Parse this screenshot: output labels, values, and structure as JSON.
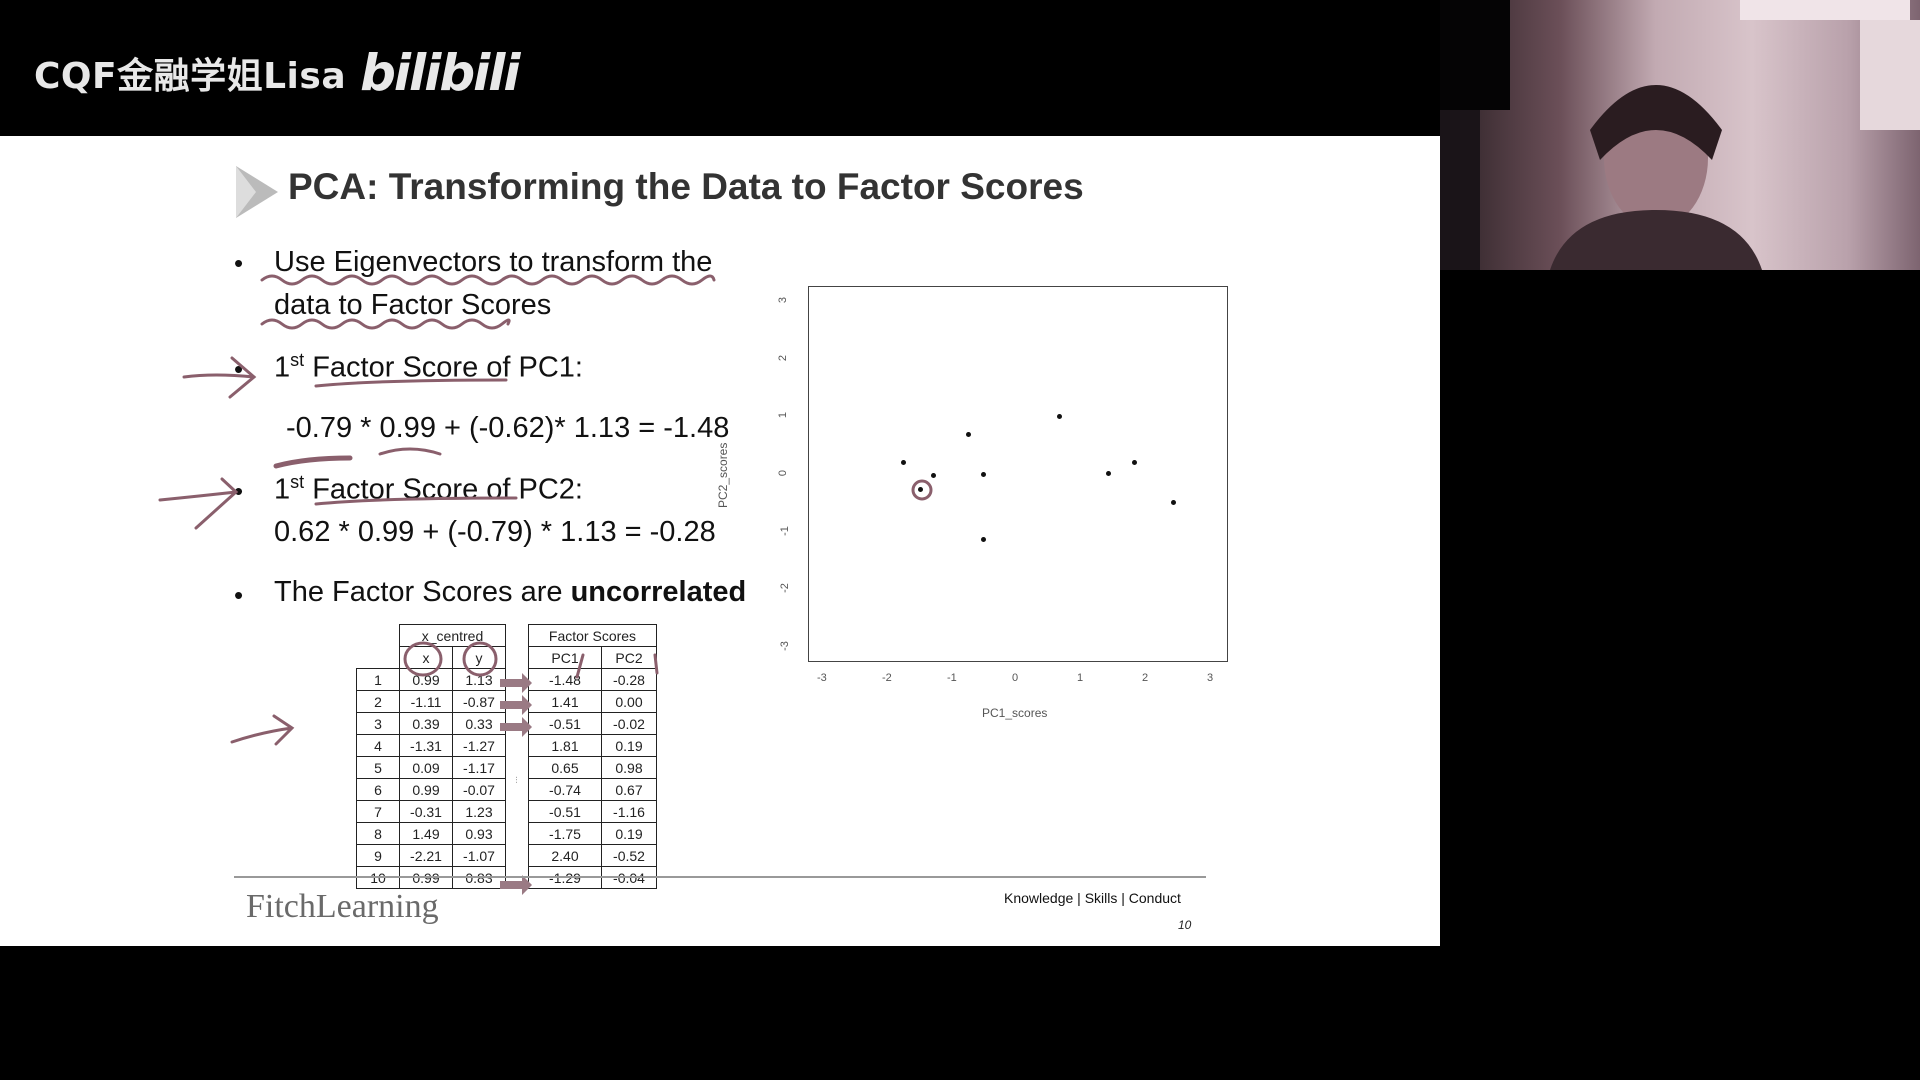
{
  "watermark": {
    "text": "CQF金融学姐Lisa",
    "logo": "bilibili"
  },
  "slide": {
    "title": "PCA: Transforming the Data to Factor Scores",
    "bullets": {
      "b1_line1": "Use Eigenvectors to transform the",
      "b1_line2": "data to Factor Scores",
      "b2_pre": "1",
      "b2_sup": "st",
      "b2_post": " Factor Score of PC1:",
      "b2_formula": "-0.79 * 0.99 + (-0.62)* 1.13 = -1.48",
      "b3_pre": "1",
      "b3_sup": "st",
      "b3_post": " Factor Score of PC2:",
      "b3_formula": "0.62 * 0.99 + (-0.79) * 1.13 = -0.28",
      "b4_pre": "The Factor Scores are ",
      "b4_bold": "uncorrelated"
    },
    "table_left": {
      "group_header": "x_centred",
      "col_x": "x",
      "col_y": "y",
      "rows": [
        {
          "idx": "1",
          "x": "0.99",
          "y": "1.13"
        },
        {
          "idx": "2",
          "x": "-1.11",
          "y": "-0.87"
        },
        {
          "idx": "3",
          "x": "0.39",
          "y": "0.33"
        },
        {
          "idx": "4",
          "x": "-1.31",
          "y": "-1.27"
        },
        {
          "idx": "5",
          "x": "0.09",
          "y": "-1.17"
        },
        {
          "idx": "6",
          "x": "0.99",
          "y": "-0.07"
        },
        {
          "idx": "7",
          "x": "-0.31",
          "y": "1.23"
        },
        {
          "idx": "8",
          "x": "1.49",
          "y": "0.93"
        },
        {
          "idx": "9",
          "x": "-2.21",
          "y": "-1.07"
        },
        {
          "idx": "10",
          "x": "0.99",
          "y": "0.83"
        }
      ]
    },
    "table_right": {
      "group_header": "Factor Scores",
      "col_pc1": "PC1",
      "col_pc2": "PC2",
      "rows": [
        {
          "pc1": "-1.48",
          "pc2": "-0.28"
        },
        {
          "pc1": "1.41",
          "pc2": "0.00"
        },
        {
          "pc1": "-0.51",
          "pc2": "-0.02"
        },
        {
          "pc1": "1.81",
          "pc2": "0.19"
        },
        {
          "pc1": "0.65",
          "pc2": "0.98"
        },
        {
          "pc1": "-0.74",
          "pc2": "0.67"
        },
        {
          "pc1": "-0.51",
          "pc2": "-1.16"
        },
        {
          "pc1": "-1.75",
          "pc2": "0.19"
        },
        {
          "pc1": "2.40",
          "pc2": "-0.52"
        },
        {
          "pc1": "-1.29",
          "pc2": "-0.04"
        }
      ]
    },
    "footer": {
      "logo": "FitchLearning",
      "tagline": "Knowledge | Skills | Conduct",
      "page": "10"
    }
  },
  "chart_data": {
    "type": "scatter",
    "xlabel": "PC1_scores",
    "ylabel": "PC2_scores",
    "xlim": [
      -3,
      3
    ],
    "ylim": [
      -3,
      3
    ],
    "xticks": [
      "-3",
      "-2",
      "-1",
      "0",
      "1",
      "2",
      "3"
    ],
    "yticks": [
      "-3",
      "-2",
      "-1",
      "0",
      "1",
      "2",
      "3"
    ],
    "points": [
      {
        "x": -1.48,
        "y": -0.28
      },
      {
        "x": 1.41,
        "y": 0.0
      },
      {
        "x": -0.51,
        "y": -0.02
      },
      {
        "x": 1.81,
        "y": 0.19
      },
      {
        "x": 0.65,
        "y": 0.98
      },
      {
        "x": -0.74,
        "y": 0.67
      },
      {
        "x": -0.51,
        "y": -1.16
      },
      {
        "x": -1.75,
        "y": 0.19
      },
      {
        "x": 2.4,
        "y": -0.52
      },
      {
        "x": -1.29,
        "y": -0.04
      }
    ],
    "grid": false
  }
}
